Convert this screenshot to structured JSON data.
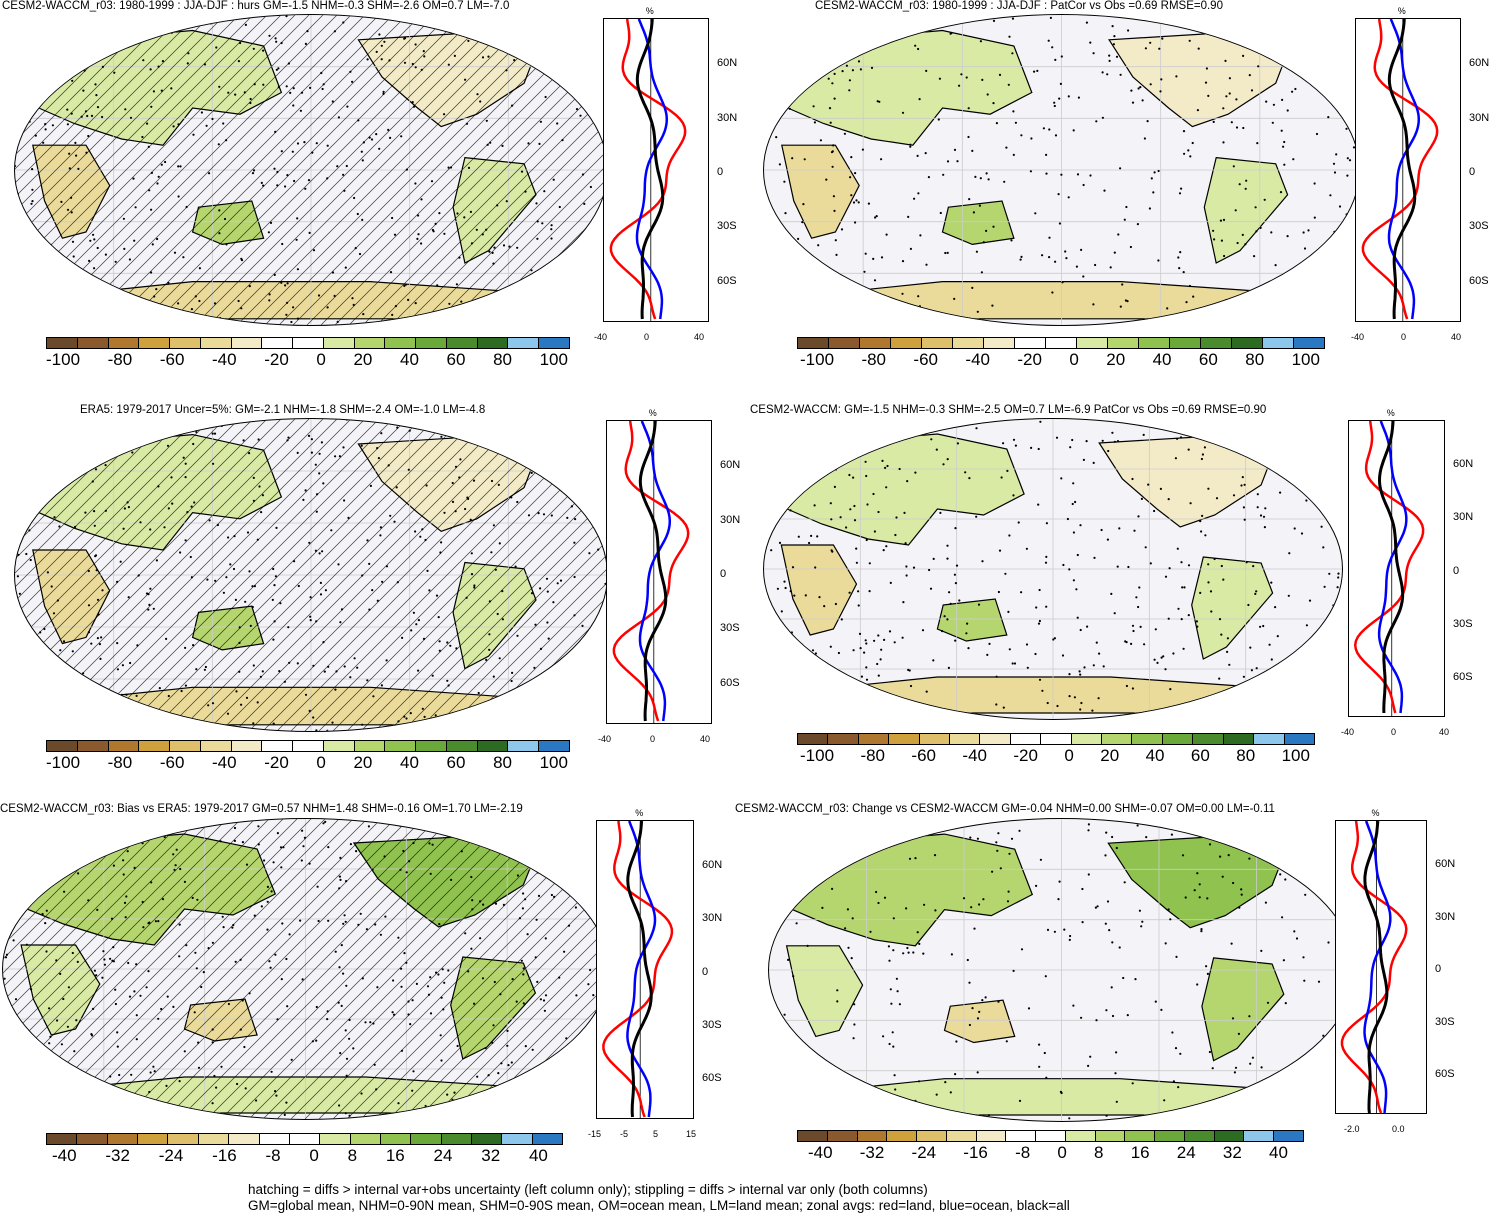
{
  "panels": [
    {
      "id": "p1",
      "title": "CESM2-WACCM_r03: 1980-1999 : JJA-DJF : hurs GM=-1.5 NHM=-0.3 SHM=-2.6 OM=0.7 LM=-7.0",
      "xticks": [
        "-40",
        "0",
        "40"
      ],
      "cbar": [
        "-100",
        "-80",
        "-60",
        "-40",
        "-20",
        "0",
        "20",
        "40",
        "60",
        "80",
        "100"
      ]
    },
    {
      "id": "p2",
      "title": "CESM2-WACCM_r03: 1980-1999 : JJA-DJF : PatCor vs Obs =0.69 RMSE=0.90",
      "xticks": [
        "-40",
        "0",
        "40"
      ],
      "cbar": [
        "-100",
        "-80",
        "-60",
        "-40",
        "-20",
        "0",
        "20",
        "40",
        "60",
        "80",
        "100"
      ]
    },
    {
      "id": "p3",
      "title": "ERA5: 1979-2017 Uncer=5%: GM=-2.1 NHM=-1.8 SHM=-2.4 OM=-1.0 LM=-4.8",
      "xticks": [
        "-40",
        "0",
        "40"
      ],
      "cbar": [
        "-100",
        "-80",
        "-60",
        "-40",
        "-20",
        "0",
        "20",
        "40",
        "60",
        "80",
        "100"
      ]
    },
    {
      "id": "p4",
      "title": "CESM2-WACCM: GM=-1.5 NHM=-0.3 SHM=-2.5 OM=0.7 LM=-6.9 PatCor vs Obs =0.69 RMSE=0.90",
      "xticks": [
        "-40",
        "0",
        "40"
      ],
      "cbar": [
        "-100",
        "-80",
        "-60",
        "-40",
        "-20",
        "0",
        "20",
        "40",
        "60",
        "80",
        "100"
      ]
    },
    {
      "id": "p5",
      "title": "CESM2-WACCM_r03: Bias vs ERA5: 1979-2017 GM=0.57 NHM=1.48 SHM=-0.16 OM=1.70 LM=-2.19",
      "xticks": [
        "-15",
        "-5",
        "5",
        "15"
      ],
      "cbar": [
        "-40",
        "-32",
        "-24",
        "-16",
        "-8",
        "0",
        "8",
        "16",
        "24",
        "32",
        "40"
      ]
    },
    {
      "id": "p6",
      "title": "CESM2-WACCM_r03: Change vs CESM2-WACCM GM=-0.04 NHM=0.00 SHM=-0.07 OM=0.00 LM=-0.11",
      "xticks": [
        "-2.0",
        "0.0"
      ],
      "cbar": [
        "-40",
        "-32",
        "-24",
        "-16",
        "-8",
        "0",
        "8",
        "16",
        "24",
        "32",
        "40"
      ]
    }
  ],
  "lat_labels": [
    "60N",
    "30N",
    "0",
    "30S",
    "60S"
  ],
  "pct_label": "%",
  "colors": {
    "cbar": [
      "#6b4a2b",
      "#8a5a2e",
      "#b0782e",
      "#cfa13c",
      "#ddc069",
      "#eadb9a",
      "#f3ebc7",
      "#ffffff",
      "#ffffff",
      "#d9eaa5",
      "#b5d66f",
      "#8fc24e",
      "#6aa83a",
      "#4a8c2d",
      "#2d6b22",
      "#8ec7ec",
      "#2b78c2"
    ],
    "land_line": "#ff0000",
    "ocean_line": "#0000ff",
    "all_line": "#000000"
  },
  "footer": {
    "line1": "hatching = diffs > internal var+obs uncertainty (left column only); stippling = diffs > internal var only (both columns)",
    "line2": "GM=global mean, NHM=0-90N mean, SHM=0-90S mean, OM=ocean mean, LM=land mean; zonal avgs: red=land, blue=ocean, black=all"
  }
}
